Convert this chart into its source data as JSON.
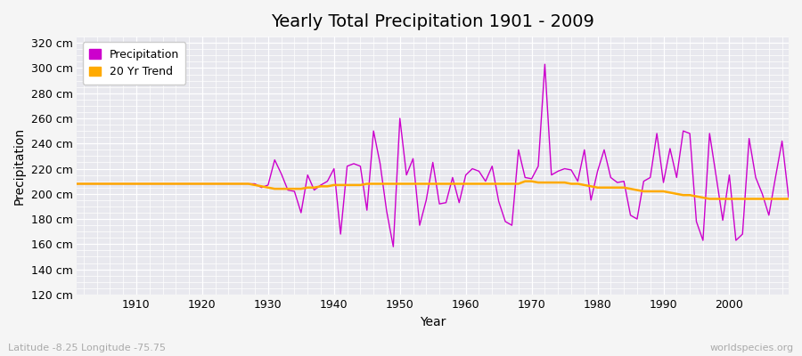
{
  "title": "Yearly Total Precipitation 1901 - 2009",
  "xlabel": "Year",
  "ylabel": "Precipitation",
  "bottom_left_label": "Latitude -8.25 Longitude -75.75",
  "bottom_right_label": "worldspecies.org",
  "fig_background_color": "#f5f5f5",
  "plot_background_color": "#e8e8ee",
  "precip_color": "#cc00cc",
  "trend_color": "#ffaa00",
  "ylim": [
    120,
    325
  ],
  "yticks": [
    120,
    140,
    160,
    180,
    200,
    220,
    240,
    260,
    280,
    300,
    320
  ],
  "xticks": [
    1910,
    1920,
    1930,
    1940,
    1950,
    1960,
    1970,
    1980,
    1990,
    2000
  ],
  "years": [
    1901,
    1902,
    1903,
    1904,
    1905,
    1906,
    1907,
    1908,
    1909,
    1910,
    1911,
    1912,
    1913,
    1914,
    1915,
    1916,
    1917,
    1918,
    1919,
    1920,
    1921,
    1922,
    1923,
    1924,
    1925,
    1926,
    1927,
    1928,
    1929,
    1930,
    1931,
    1932,
    1933,
    1934,
    1935,
    1936,
    1937,
    1938,
    1939,
    1940,
    1941,
    1942,
    1943,
    1944,
    1945,
    1946,
    1947,
    1948,
    1949,
    1950,
    1951,
    1952,
    1953,
    1954,
    1955,
    1956,
    1957,
    1958,
    1959,
    1960,
    1961,
    1962,
    1963,
    1964,
    1965,
    1966,
    1967,
    1968,
    1969,
    1970,
    1971,
    1972,
    1973,
    1974,
    1975,
    1976,
    1977,
    1978,
    1979,
    1980,
    1981,
    1982,
    1983,
    1984,
    1985,
    1986,
    1987,
    1988,
    1989,
    1990,
    1991,
    1992,
    1993,
    1994,
    1995,
    1996,
    1997,
    1998,
    1999,
    2000,
    2001,
    2002,
    2003,
    2004,
    2005,
    2006,
    2007,
    2008,
    2009
  ],
  "precip": [
    208,
    208,
    208,
    208,
    208,
    208,
    208,
    208,
    208,
    208,
    208,
    208,
    208,
    208,
    208,
    208,
    208,
    208,
    208,
    208,
    208,
    208,
    208,
    208,
    208,
    208,
    208,
    208,
    205,
    207,
    227,
    216,
    203,
    202,
    185,
    215,
    203,
    207,
    210,
    220,
    168,
    222,
    224,
    222,
    187,
    250,
    224,
    186,
    158,
    260,
    215,
    228,
    175,
    195,
    225,
    192,
    193,
    213,
    193,
    215,
    220,
    218,
    210,
    222,
    194,
    178,
    175,
    235,
    213,
    212,
    222,
    303,
    215,
    218,
    220,
    219,
    210,
    235,
    195,
    218,
    235,
    213,
    209,
    210,
    183,
    180,
    210,
    213,
    248,
    209,
    236,
    213,
    250,
    248,
    178,
    163,
    248,
    214,
    179,
    215,
    163,
    168,
    244,
    213,
    200,
    183,
    213,
    242,
    197
  ],
  "trend": [
    208,
    208,
    208,
    208,
    208,
    208,
    208,
    208,
    208,
    208,
    208,
    208,
    208,
    208,
    208,
    208,
    208,
    208,
    208,
    208,
    208,
    208,
    208,
    208,
    208,
    208,
    208,
    207,
    206,
    205,
    204,
    204,
    204,
    204,
    204,
    205,
    205,
    206,
    206,
    207,
    207,
    207,
    207,
    207,
    208,
    208,
    208,
    208,
    208,
    208,
    208,
    208,
    208,
    208,
    208,
    208,
    208,
    208,
    208,
    208,
    208,
    208,
    208,
    208,
    208,
    208,
    208,
    208,
    210,
    210,
    209,
    209,
    209,
    209,
    209,
    208,
    208,
    207,
    206,
    205,
    205,
    205,
    205,
    205,
    204,
    203,
    202,
    202,
    202,
    202,
    201,
    200,
    199,
    199,
    198,
    197,
    196,
    196,
    196,
    196,
    196,
    196,
    196,
    196,
    196,
    196,
    196,
    196,
    196
  ]
}
